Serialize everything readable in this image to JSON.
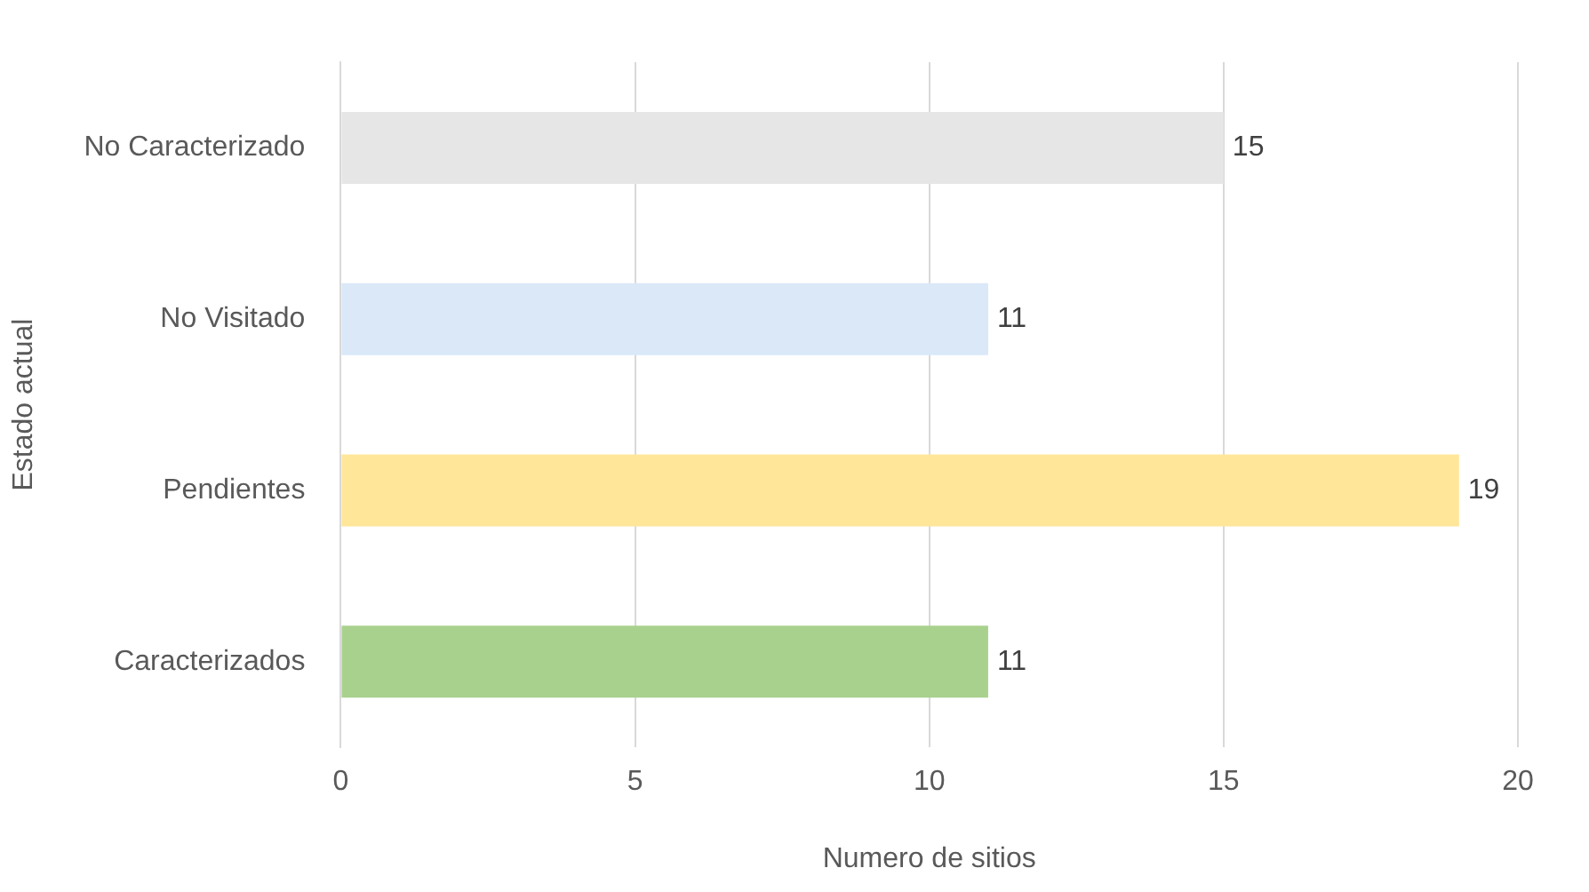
{
  "chart_data": {
    "type": "bar",
    "orientation": "horizontal",
    "categories": [
      "No Caracterizado",
      "No Visitado",
      "Pendientes",
      "Caracterizados"
    ],
    "values": [
      15,
      11,
      19,
      11
    ],
    "colors": [
      "#e6e6e6",
      "#dae8f8",
      "#ffe699",
      "#a9d18e"
    ],
    "xlabel": "Numero de sitios",
    "ylabel": "Estado actual",
    "xlim": [
      0,
      20
    ],
    "xticks": [
      0,
      5,
      10,
      15,
      20
    ],
    "grid": "x",
    "data_labels": true,
    "legend": false
  }
}
